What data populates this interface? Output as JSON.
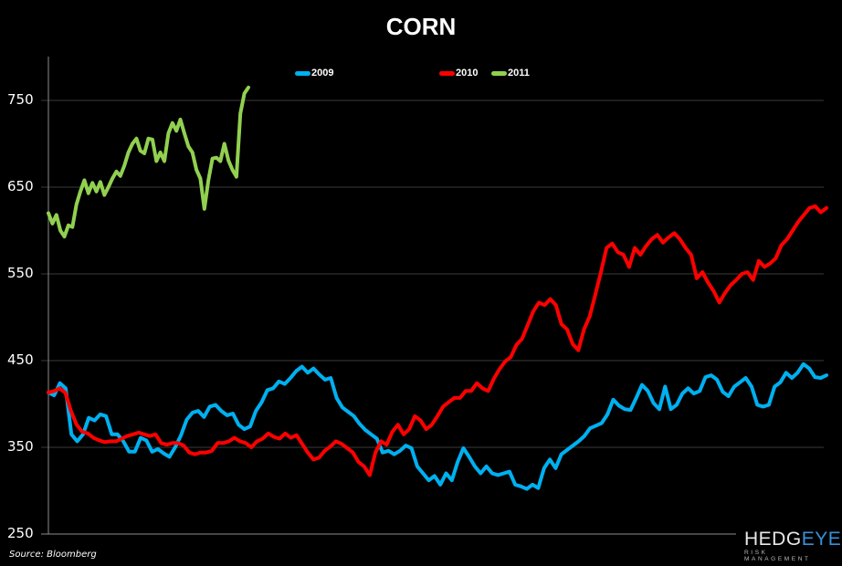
{
  "title": "CORN",
  "legend": [
    {
      "label": "2009",
      "color": "#00b0f0"
    },
    {
      "label": "2010",
      "color": "#ff0000"
    },
    {
      "label": "2011",
      "color": "#92d050"
    }
  ],
  "yaxis": {
    "ticks": [
      "750",
      "650",
      "550",
      "450",
      "350",
      "250"
    ]
  },
  "source": "Source: Bloomberg",
  "logo": {
    "main_a": "HEDG",
    "main_b": "EYE",
    "sub": "RISK MANAGEMENT"
  },
  "chart_data": {
    "type": "line",
    "title": "CORN",
    "xlabel": "",
    "ylabel": "",
    "ylim": [
      250,
      800
    ],
    "yticks": [
      250,
      350,
      450,
      550,
      650,
      750
    ],
    "grid": "horizontal",
    "legend_position": "top",
    "x_description": "trading days of calendar year (index), no tick labels",
    "series": [
      {
        "name": "2009",
        "color": "#00b0f0",
        "values": [
          413,
          410,
          424,
          418,
          365,
          357,
          365,
          384,
          381,
          388,
          386,
          365,
          365,
          357,
          345,
          345,
          361,
          358,
          345,
          348,
          343,
          339,
          350,
          364,
          382,
          390,
          392,
          385,
          397,
          399,
          392,
          387,
          389,
          376,
          371,
          374,
          392,
          402,
          416,
          418,
          426,
          423,
          430,
          438,
          443,
          436,
          441,
          434,
          428,
          430,
          407,
          396,
          391,
          386,
          377,
          370,
          365,
          360,
          344,
          346,
          342,
          346,
          352,
          349,
          328,
          320,
          312,
          317,
          307,
          320,
          312,
          333,
          349,
          339,
          328,
          320,
          328,
          320,
          318,
          320,
          322,
          307,
          305,
          302,
          307,
          303,
          326,
          336,
          326,
          342,
          347,
          352,
          357,
          363,
          372,
          375,
          378,
          388,
          405,
          398,
          394,
          393,
          407,
          422,
          415,
          401,
          394,
          420,
          394,
          399,
          412,
          418,
          412,
          415,
          431,
          433,
          428,
          414,
          409,
          420,
          425,
          430,
          420,
          399,
          397,
          399,
          420,
          425,
          436,
          430,
          436,
          446,
          441,
          431,
          430,
          433
        ],
        "note": "approximate values read from pixel positions"
      },
      {
        "name": "2010",
        "color": "#ff0000",
        "values": [
          413,
          415,
          418,
          413,
          392,
          376,
          368,
          366,
          361,
          358,
          356,
          357,
          357,
          360,
          363,
          365,
          367,
          365,
          363,
          365,
          355,
          353,
          355,
          355,
          352,
          344,
          342,
          344,
          344,
          346,
          355,
          355,
          357,
          361,
          357,
          355,
          350,
          357,
          360,
          366,
          362,
          360,
          366,
          361,
          364,
          354,
          344,
          336,
          338,
          346,
          351,
          357,
          354,
          349,
          344,
          333,
          328,
          318,
          344,
          357,
          353,
          368,
          376,
          365,
          371,
          386,
          381,
          371,
          376,
          386,
          397,
          402,
          407,
          407,
          415,
          415,
          424,
          418,
          415,
          429,
          440,
          449,
          454,
          468,
          475,
          491,
          507,
          517,
          514,
          521,
          514,
          492,
          486,
          469,
          462,
          486,
          501,
          526,
          552,
          580,
          585,
          575,
          572,
          558,
          580,
          572,
          582,
          590,
          595,
          586,
          592,
          597,
          590,
          580,
          572,
          545,
          552,
          540,
          530,
          517,
          528,
          537,
          543,
          550,
          552,
          543,
          565,
          558,
          562,
          568,
          583,
          590,
          600,
          610,
          618,
          626,
          628,
          621,
          626
        ],
        "note": "approximate values read from pixel positions"
      },
      {
        "name": "2011",
        "color": "#92d050",
        "values": [
          620,
          608,
          618,
          600,
          593,
          606,
          604,
          630,
          645,
          658,
          643,
          655,
          645,
          656,
          641,
          650,
          660,
          668,
          663,
          675,
          690,
          700,
          706,
          692,
          689,
          706,
          705,
          680,
          690,
          680,
          712,
          724,
          715,
          728,
          712,
          697,
          690,
          670,
          660,
          625,
          658,
          683,
          684,
          680,
          700,
          681,
          670,
          662,
          735,
          758,
          765
        ]
      }
    ]
  }
}
